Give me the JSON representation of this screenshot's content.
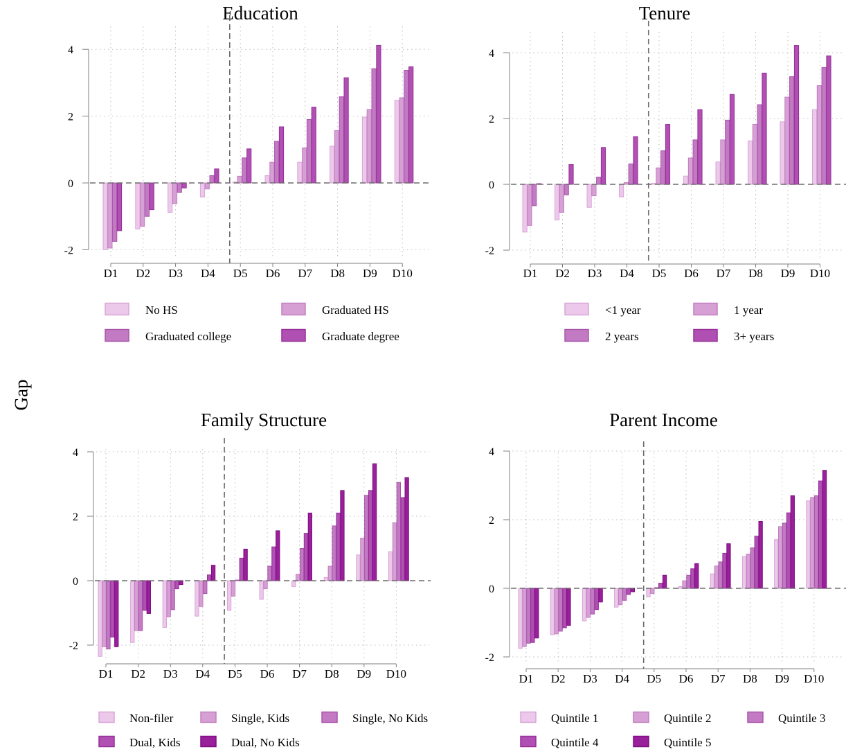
{
  "y_label": "Gap",
  "colors": [
    "#ecc8ea",
    "#d6a0d4",
    "#c27bc2",
    "#b050b2",
    "#9a1f9a"
  ],
  "edge_colors": [
    "#d9a5d7",
    "#c27ec1",
    "#a954ab",
    "#962f99",
    "#7d0f80"
  ],
  "chart_data": [
    {
      "type": "bar",
      "title": "Education",
      "categories": [
        "D1",
        "D2",
        "D3",
        "D4",
        "D5",
        "D6",
        "D7",
        "D8",
        "D9",
        "D10"
      ],
      "ylim": [
        -2.1,
        4.4
      ],
      "yticks": [
        -2,
        0,
        2,
        4
      ],
      "grid": true,
      "reference_lines": {
        "y": 0,
        "x_between": [
          "D4",
          "D5"
        ]
      },
      "legend_position": "bottom",
      "legend_columns": 2,
      "series": [
        {
          "name": "No HS",
          "values": [
            -2.0,
            -1.38,
            -0.88,
            -0.42,
            0.03,
            0.22,
            0.62,
            1.1,
            1.97,
            2.47
          ]
        },
        {
          "name": "Graduated HS",
          "values": [
            -1.95,
            -1.3,
            -0.62,
            -0.18,
            0.2,
            0.62,
            1.05,
            1.57,
            2.2,
            2.55
          ]
        },
        {
          "name": "Graduated college",
          "values": [
            -1.75,
            -1.0,
            -0.28,
            0.22,
            0.75,
            1.25,
            1.9,
            2.58,
            3.42,
            3.37
          ]
        },
        {
          "name": "Graduate degree",
          "values": [
            -1.43,
            -0.8,
            -0.15,
            0.42,
            1.02,
            1.68,
            2.27,
            3.15,
            4.12,
            3.48
          ]
        }
      ]
    },
    {
      "type": "bar",
      "title": "Tenure",
      "categories": [
        "D1",
        "D2",
        "D3",
        "D4",
        "D5",
        "D6",
        "D7",
        "D8",
        "D9",
        "D10"
      ],
      "ylim": [
        -2.1,
        4.4
      ],
      "yticks": [
        -2,
        0,
        2,
        4
      ],
      "grid": true,
      "reference_lines": {
        "y": 0,
        "x_between": [
          "D4",
          "D5"
        ]
      },
      "legend_position": "bottom",
      "legend_columns": 2,
      "series": [
        {
          "name": "<1 year",
          "values": [
            -1.45,
            -1.08,
            -0.7,
            -0.38,
            0.03,
            0.25,
            0.68,
            1.32,
            1.9,
            2.27
          ]
        },
        {
          "name": "1 year",
          "values": [
            -1.25,
            -0.85,
            -0.35,
            0.05,
            0.5,
            0.8,
            1.35,
            1.82,
            2.65,
            3.0
          ]
        },
        {
          "name": "2 years",
          "values": [
            -0.65,
            -0.32,
            0.22,
            0.62,
            1.02,
            1.35,
            1.95,
            2.42,
            3.27,
            3.55
          ]
        },
        {
          "name": "3+ years",
          "values": [
            0.02,
            0.6,
            1.12,
            1.45,
            1.82,
            2.27,
            2.73,
            3.38,
            4.22,
            3.9
          ]
        }
      ]
    },
    {
      "type": "bar",
      "title": "Family Structure",
      "categories": [
        "D1",
        "D2",
        "D3",
        "D4",
        "D5",
        "D6",
        "D7",
        "D8",
        "D9",
        "D10"
      ],
      "ylim": [
        -2.5,
        4.2
      ],
      "yticks": [
        -2,
        0,
        2,
        4
      ],
      "grid": true,
      "reference_lines": {
        "y": 0,
        "x_between": [
          "D4",
          "D5"
        ]
      },
      "legend_position": "bottom",
      "legend_columns": 3,
      "series": [
        {
          "name": "Non-filer",
          "values": [
            -2.35,
            -1.92,
            -1.45,
            -1.1,
            -0.92,
            -0.58,
            -0.18,
            0.1,
            0.8,
            0.9
          ]
        },
        {
          "name": "Single, Kids",
          "values": [
            -2.05,
            -1.55,
            -1.12,
            -0.8,
            -0.48,
            -0.25,
            0.2,
            0.45,
            1.32,
            1.8
          ]
        },
        {
          "name": "Single, No Kids",
          "values": [
            -2.12,
            -1.55,
            -0.9,
            -0.4,
            0.02,
            0.45,
            1.0,
            1.7,
            2.65,
            3.05
          ]
        },
        {
          "name": "Dual, Kids",
          "values": [
            -1.75,
            -0.92,
            -0.25,
            0.18,
            0.7,
            1.05,
            1.47,
            2.1,
            2.8,
            2.58
          ]
        },
        {
          "name": "Dual, No Kids",
          "values": [
            -2.05,
            -1.02,
            -0.12,
            0.48,
            0.98,
            1.55,
            2.1,
            2.8,
            3.63,
            3.2
          ]
        }
      ]
    },
    {
      "type": "bar",
      "title": "Parent Income",
      "categories": [
        "D1",
        "D2",
        "D3",
        "D4",
        "D5",
        "D6",
        "D7",
        "D8",
        "D9",
        "D10"
      ],
      "ylim": [
        -2.2,
        4.0
      ],
      "yticks": [
        -2,
        0,
        2,
        4
      ],
      "grid": true,
      "reference_lines": {
        "y": 0,
        "x_between": [
          "D4",
          "D5"
        ]
      },
      "legend_position": "bottom",
      "legend_columns": 3,
      "series": [
        {
          "name": "Quintile 1",
          "values": [
            -1.75,
            -1.35,
            -0.95,
            -0.55,
            -0.25,
            0.05,
            0.42,
            0.93,
            1.42,
            2.55
          ]
        },
        {
          "name": "Quintile 2",
          "values": [
            -1.7,
            -1.33,
            -0.85,
            -0.48,
            -0.15,
            0.22,
            0.65,
            1.0,
            1.8,
            2.65
          ]
        },
        {
          "name": "Quintile 3",
          "values": [
            -1.6,
            -1.25,
            -0.75,
            -0.35,
            0.02,
            0.38,
            0.77,
            1.18,
            1.9,
            2.7
          ]
        },
        {
          "name": "Quintile 4",
          "values": [
            -1.58,
            -1.15,
            -0.62,
            -0.18,
            0.15,
            0.57,
            1.02,
            1.52,
            2.2,
            3.13
          ]
        },
        {
          "name": "Quintile 5",
          "values": [
            -1.45,
            -1.08,
            -0.4,
            -0.1,
            0.38,
            0.72,
            1.3,
            1.95,
            2.7,
            3.44
          ]
        }
      ]
    }
  ]
}
